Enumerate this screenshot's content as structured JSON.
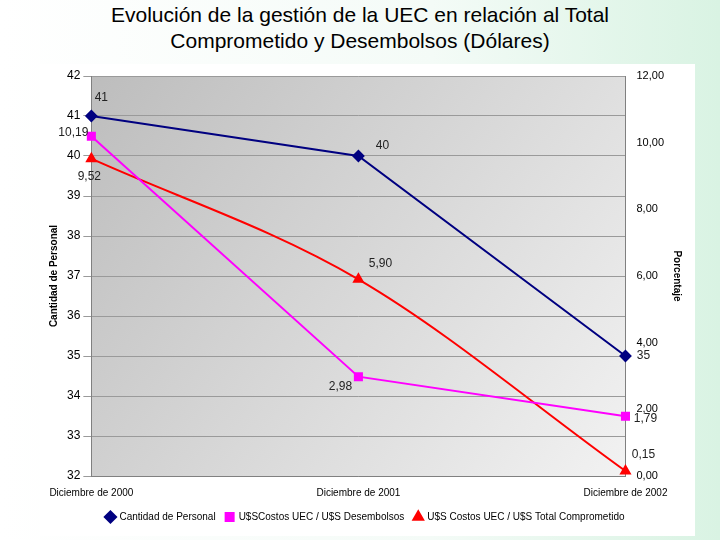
{
  "chart_data": {
    "type": "line",
    "title": "Evolución de la gestión de la UEC en relación al Total Comprometido y Desembolsos (Dólares)",
    "categories": [
      "Diciembre de 2000",
      "Diciembre de 2001",
      "Diciembre de 2002"
    ],
    "ylabel": "Cantidad de Personal",
    "y2label": "Porcentaje",
    "ylim": [
      32,
      42
    ],
    "yticks": [
      32,
      33,
      34,
      35,
      36,
      37,
      38,
      39,
      40,
      41,
      42
    ],
    "y2lim": [
      0,
      12
    ],
    "y2ticks": [
      {
        "value": 0,
        "label": "0,00"
      },
      {
        "value": 2,
        "label": "2,00"
      },
      {
        "value": 4,
        "label": "4,00"
      },
      {
        "value": 6,
        "label": "6,00"
      },
      {
        "value": 8,
        "label": "8,00"
      },
      {
        "value": 10,
        "label": "10,00"
      },
      {
        "value": 12,
        "label": "12,00"
      }
    ],
    "grid": true,
    "legend": "bottom",
    "data_labels": true,
    "series": [
      {
        "name": "Cantidad de Personal",
        "color": "#000080",
        "marker": "diamond",
        "line_style": "solid",
        "values": [
          41,
          40,
          35
        ]
      },
      {
        "name": "U$SCostos UEC / U$S Desembolsos",
        "color": "#ff00ff",
        "marker": "square",
        "line_style": "solid",
        "axis": "y2",
        "values": [
          10.19,
          2.98,
          1.79
        ],
        "value_labels": [
          "10,19",
          "2,98",
          "1,79"
        ]
      },
      {
        "name": "U$S Costos UEC / U$S Total Comprometido",
        "color": "#ff0000",
        "marker": "triangle",
        "line_style": "smooth",
        "axis": "y2",
        "values": [
          9.52,
          5.9,
          0.15
        ],
        "value_labels": [
          "9,52",
          "5,90",
          "0,15"
        ]
      }
    ]
  }
}
